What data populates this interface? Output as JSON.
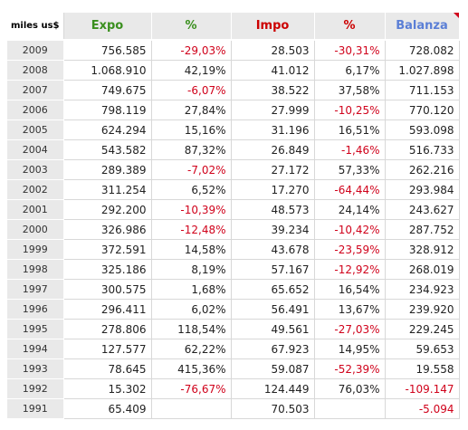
{
  "table": {
    "headers": {
      "unit": "miles us$",
      "expo": "Expo",
      "expo_pct": "%",
      "impo": "Impo",
      "impo_pct": "%",
      "balanza": "Balanza"
    },
    "header_colors": {
      "expo": "#3a8f1e",
      "expo_pct": "#3a8f1e",
      "impo": "#cc0000",
      "impo_pct": "#cc0000",
      "balanza": "#5b7fd6"
    },
    "negative_color": "#d0021b",
    "rows": [
      {
        "year": "2009",
        "expo": "756.585",
        "expo_pct": "-29,03%",
        "impo": "28.503",
        "impo_pct": "-30,31%",
        "balanza": "728.082"
      },
      {
        "year": "2008",
        "expo": "1.068.910",
        "expo_pct": "42,19%",
        "impo": "41.012",
        "impo_pct": "6,17%",
        "balanza": "1.027.898"
      },
      {
        "year": "2007",
        "expo": "749.675",
        "expo_pct": "-6,07%",
        "impo": "38.522",
        "impo_pct": "37,58%",
        "balanza": "711.153"
      },
      {
        "year": "2006",
        "expo": "798.119",
        "expo_pct": "27,84%",
        "impo": "27.999",
        "impo_pct": "-10,25%",
        "balanza": "770.120"
      },
      {
        "year": "2005",
        "expo": "624.294",
        "expo_pct": "15,16%",
        "impo": "31.196",
        "impo_pct": "16,51%",
        "balanza": "593.098"
      },
      {
        "year": "2004",
        "expo": "543.582",
        "expo_pct": "87,32%",
        "impo": "26.849",
        "impo_pct": "-1,46%",
        "balanza": "516.733"
      },
      {
        "year": "2003",
        "expo": "289.389",
        "expo_pct": "-7,02%",
        "impo": "27.172",
        "impo_pct": "57,33%",
        "balanza": "262.216"
      },
      {
        "year": "2002",
        "expo": "311.254",
        "expo_pct": "6,52%",
        "impo": "17.270",
        "impo_pct": "-64,44%",
        "balanza": "293.984"
      },
      {
        "year": "2001",
        "expo": "292.200",
        "expo_pct": "-10,39%",
        "impo": "48.573",
        "impo_pct": "24,14%",
        "balanza": "243.627"
      },
      {
        "year": "2000",
        "expo": "326.986",
        "expo_pct": "-12,48%",
        "impo": "39.234",
        "impo_pct": "-10,42%",
        "balanza": "287.752"
      },
      {
        "year": "1999",
        "expo": "372.591",
        "expo_pct": "14,58%",
        "impo": "43.678",
        "impo_pct": "-23,59%",
        "balanza": "328.912"
      },
      {
        "year": "1998",
        "expo": "325.186",
        "expo_pct": "8,19%",
        "impo": "57.167",
        "impo_pct": "-12,92%",
        "balanza": "268.019"
      },
      {
        "year": "1997",
        "expo": "300.575",
        "expo_pct": "1,68%",
        "impo": "65.652",
        "impo_pct": "16,54%",
        "balanza": "234.923"
      },
      {
        "year": "1996",
        "expo": "296.411",
        "expo_pct": "6,02%",
        "impo": "56.491",
        "impo_pct": "13,67%",
        "balanza": "239.920"
      },
      {
        "year": "1995",
        "expo": "278.806",
        "expo_pct": "118,54%",
        "impo": "49.561",
        "impo_pct": "-27,03%",
        "balanza": "229.245"
      },
      {
        "year": "1994",
        "expo": "127.577",
        "expo_pct": "62,22%",
        "impo": "67.923",
        "impo_pct": "14,95%",
        "balanza": "59.653"
      },
      {
        "year": "1993",
        "expo": "78.645",
        "expo_pct": "415,36%",
        "impo": "59.087",
        "impo_pct": "-52,39%",
        "balanza": "19.558"
      },
      {
        "year": "1992",
        "expo": "15.302",
        "expo_pct": "-76,67%",
        "impo": "124.449",
        "impo_pct": "76,03%",
        "balanza": "-109.147"
      },
      {
        "year": "1991",
        "expo": "65.409",
        "expo_pct": "",
        "impo": "70.503",
        "impo_pct": "",
        "balanza": "-5.094"
      }
    ]
  }
}
